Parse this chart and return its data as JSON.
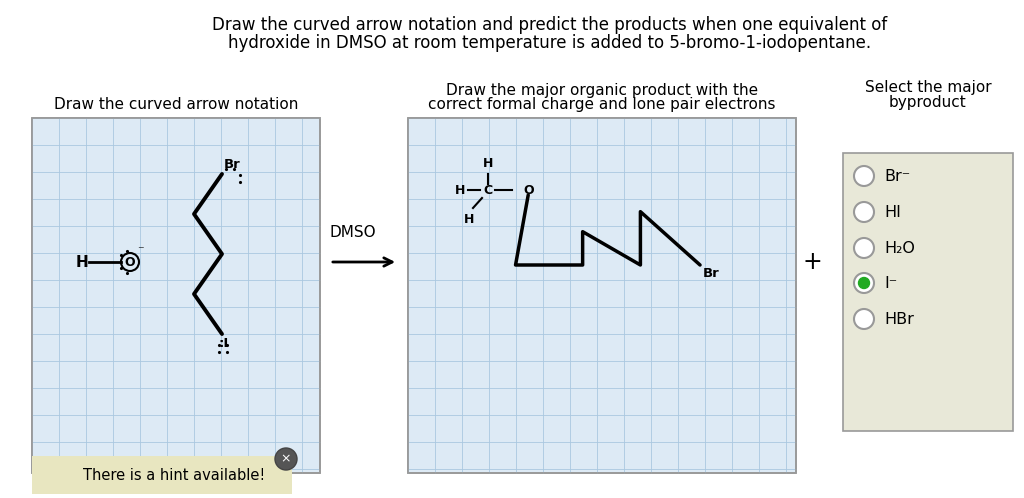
{
  "title_line1": "Draw the curved arrow notation and predict the products when one equivalent of",
  "title_line2": "hydroxide in DMSO at room temperature is added to 5-bromo-1-iodopentane.",
  "bg_color": "#ffffff",
  "grid_color": "#aac8e0",
  "grid_bg": "#ddeaf5",
  "panel1_title": "Draw the curved arrow notation",
  "panel2_title_line1": "Draw the major organic product with the",
  "panel2_title_line2": "correct formal charge and lone pair electrons",
  "panel3_title_line1": "Select the major",
  "panel3_title_line2": "byproduct",
  "panel3_items": [
    "Br⁻",
    "HI",
    "H₂O",
    "I⁻",
    "HBr"
  ],
  "panel3_selected": 3,
  "hint_text": "There is a hint available!",
  "dmso_text": "DMSO"
}
